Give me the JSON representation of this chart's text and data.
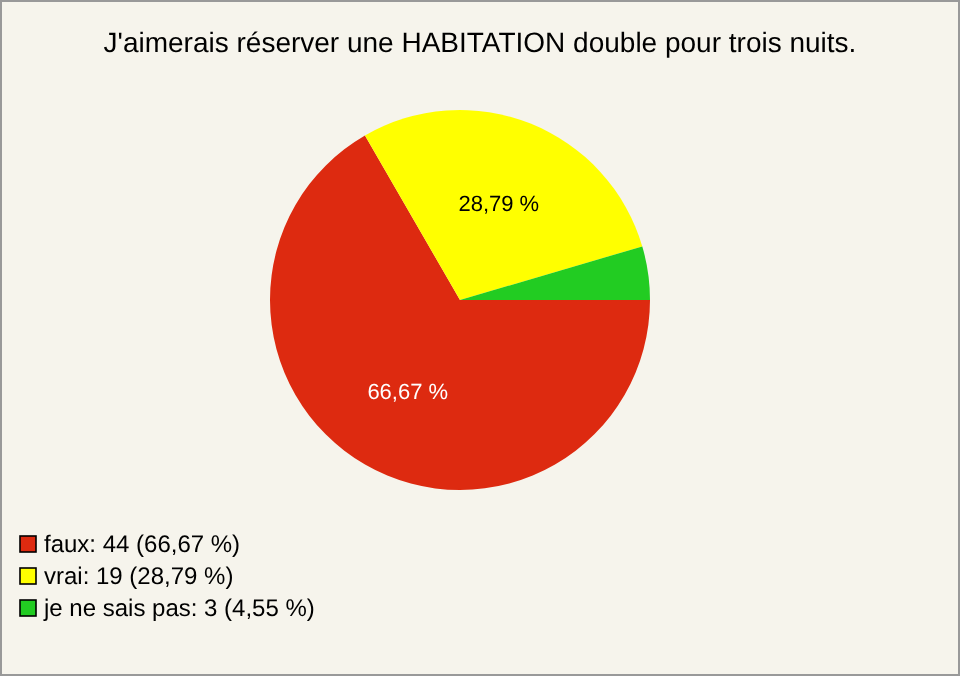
{
  "chart_data": {
    "type": "pie",
    "title": "J'aimerais réserver une HABITATION double pour trois nuits.",
    "categories": [
      "faux: 44 (66,67 %)",
      "vrai: 19 (28,79 %)",
      "je ne sais pas: 3 (4,55 %)"
    ],
    "values": [
      66.67,
      28.79,
      4.55
    ],
    "colors": [
      "#dd2a10",
      "#ffff00",
      "#22cc22"
    ],
    "value_labels": [
      "66,67 %",
      "28,79 %",
      null
    ],
    "legend": "bottom left"
  }
}
